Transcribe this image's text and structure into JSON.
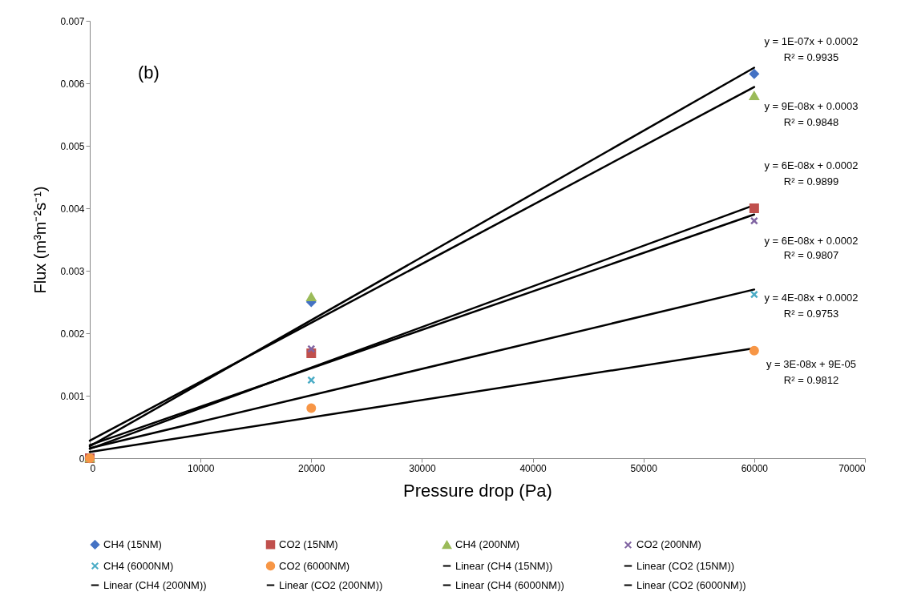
{
  "chart_data": {
    "type": "scatter",
    "xlabel": "Pressure drop (Pa)",
    "ylabel": "Flux (m³m⁻²s⁻¹)",
    "xlim": [
      0,
      70000
    ],
    "xticks": [
      0,
      10000,
      20000,
      30000,
      40000,
      50000,
      60000,
      70000
    ],
    "ylim": [
      0,
      0.007
    ],
    "yticks": [
      0,
      0.001,
      0.002,
      0.003,
      0.004,
      0.005,
      0.006,
      0.007
    ],
    "grid": false,
    "legend": "bottom",
    "series": [
      {
        "name": "CH4 (15NM)",
        "type": "scatter",
        "marker": "diamond",
        "color": "#4472c4",
        "x": [
          0,
          20000,
          60000
        ],
        "values": [
          0,
          0.0025,
          0.00615
        ]
      },
      {
        "name": "CO2 (15NM)",
        "type": "scatter",
        "marker": "square",
        "color": "#c0504d",
        "x": [
          0,
          20000,
          60000
        ],
        "values": [
          0,
          0.00168,
          0.004
        ]
      },
      {
        "name": "CH4 (200NM)",
        "type": "scatter",
        "marker": "triangle",
        "color": "#9bbb59",
        "x": [
          0,
          20000,
          60000
        ],
        "values": [
          0,
          0.00258,
          0.0058
        ]
      },
      {
        "name": "CO2 (200NM)",
        "type": "scatter",
        "marker": "cross",
        "color": "#8064a2",
        "x": [
          20000,
          60000
        ],
        "values": [
          0.00175,
          0.0038
        ]
      },
      {
        "name": "CH4 (6000NM)",
        "type": "scatter",
        "marker": "cross",
        "color": "#4bacc6",
        "x": [
          0,
          20000,
          60000
        ],
        "values": [
          0,
          0.00125,
          0.00262
        ]
      },
      {
        "name": "CO2 (6000NM)",
        "type": "scatter",
        "marker": "circle",
        "color": "#f79646",
        "x": [
          0,
          20000,
          60000
        ],
        "values": [
          0,
          0.0008,
          0.00172
        ]
      },
      {
        "name": "Linear (CH4 (15NM))",
        "type": "line",
        "color": "#000000",
        "x": [
          0,
          60000
        ],
        "values": [
          0.00019,
          0.00625
        ]
      },
      {
        "name": "Linear (CO2 (15NM))",
        "type": "line",
        "color": "#000000",
        "x": [
          0,
          60000
        ],
        "values": [
          0.00015,
          0.00405
        ]
      },
      {
        "name": "Linear (CH4 (200NM))",
        "type": "line",
        "color": "#000000",
        "x": [
          0,
          60000
        ],
        "values": [
          0.00028,
          0.00594
        ]
      },
      {
        "name": "Linear (CO2 (200NM))",
        "type": "line",
        "color": "#000000",
        "x": [
          0,
          60000
        ],
        "values": [
          0.00021,
          0.0039
        ]
      },
      {
        "name": "Linear (CH4 (6000NM))",
        "type": "line",
        "color": "#000000",
        "x": [
          0,
          60000
        ],
        "values": [
          0.00016,
          0.0027
        ]
      },
      {
        "name": "Linear (CO2 (6000NM))",
        "type": "line",
        "color": "#000000",
        "x": [
          0,
          60000
        ],
        "values": [
          0.0001,
          0.00176
        ]
      }
    ],
    "annotations": [
      "(b)",
      "y = 1E-07x + 0.0002",
      "R² = 0.9935",
      "y = 9E-08x + 0.0003",
      "R² = 0.9848",
      "y = 6E-08x + 0.0002",
      "R² = 0.9899",
      "y = 6E-08x + 0.0002",
      "R² = 0.9807",
      "y = 4E-08x + 0.0002",
      "R² = 0.9753",
      "y = 3E-08x + 9E-05",
      "R² = 0.9812"
    ]
  }
}
